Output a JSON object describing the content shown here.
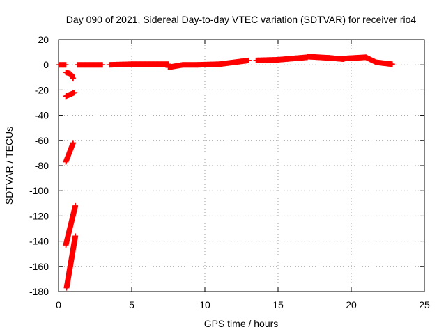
{
  "chart_data": {
    "type": "scatter",
    "title": "Day 090 of 2021, Sidereal Day-to-day VTEC variation (SDTVAR) for receiver rio4",
    "xlabel": "GPS time / hours",
    "ylabel": "SDTVAR / TECUs",
    "xlim": [
      0,
      25
    ],
    "ylim": [
      -180,
      20
    ],
    "x_ticks": [
      0,
      5,
      10,
      15,
      20,
      25
    ],
    "y_ticks": [
      20,
      0,
      -20,
      -40,
      -60,
      -80,
      -100,
      -120,
      -140,
      -160,
      -180
    ],
    "grid": true,
    "marker": "plus",
    "color": "#ff0000",
    "segments": [
      {
        "x": [
          0.05,
          0.5
        ],
        "y": [
          0,
          0
        ]
      },
      {
        "x": [
          0.5,
          0.8
        ],
        "y": [
          -6,
          -7
        ]
      },
      {
        "x": [
          0.9,
          1.0
        ],
        "y": [
          -8,
          -11
        ]
      },
      {
        "x": [
          0.5,
          1.1
        ],
        "y": [
          -25,
          -22
        ]
      },
      {
        "x": [
          0.5,
          1.0
        ],
        "y": [
          -77,
          -62
        ]
      },
      {
        "x": [
          0.5,
          1.15
        ],
        "y": [
          -143,
          -112
        ]
      },
      {
        "x": [
          0.55,
          1.15
        ],
        "y": [
          -177,
          -136
        ]
      },
      {
        "x": [
          1.3,
          3.0
        ],
        "y": [
          0,
          0
        ]
      },
      {
        "x": [
          3.5,
          5.0
        ],
        "y": [
          0,
          0.5
        ]
      },
      {
        "x": [
          5.0,
          7.5
        ],
        "y": [
          0.5,
          0.5
        ]
      },
      {
        "x": [
          7.5,
          8.5
        ],
        "y": [
          -2,
          0
        ]
      },
      {
        "x": [
          8.5,
          9.5
        ],
        "y": [
          0,
          0
        ]
      },
      {
        "x": [
          9.5,
          11.0
        ],
        "y": [
          0,
          0.5
        ]
      },
      {
        "x": [
          11.0,
          13.0
        ],
        "y": [
          0.5,
          3.5
        ]
      },
      {
        "x": [
          13.5,
          15.0
        ],
        "y": [
          3.5,
          4
        ]
      },
      {
        "x": [
          15.0,
          17.0
        ],
        "y": [
          4,
          6
        ]
      },
      {
        "x": [
          17.0,
          18.5
        ],
        "y": [
          6.5,
          5.5
        ]
      },
      {
        "x": [
          18.5,
          19.5
        ],
        "y": [
          5.5,
          4.5
        ]
      },
      {
        "x": [
          19.5,
          21.0
        ],
        "y": [
          5,
          6
        ]
      },
      {
        "x": [
          21.0,
          21.7
        ],
        "y": [
          6,
          2
        ]
      },
      {
        "x": [
          21.7,
          22.8
        ],
        "y": [
          2,
          0.5
        ]
      }
    ]
  }
}
